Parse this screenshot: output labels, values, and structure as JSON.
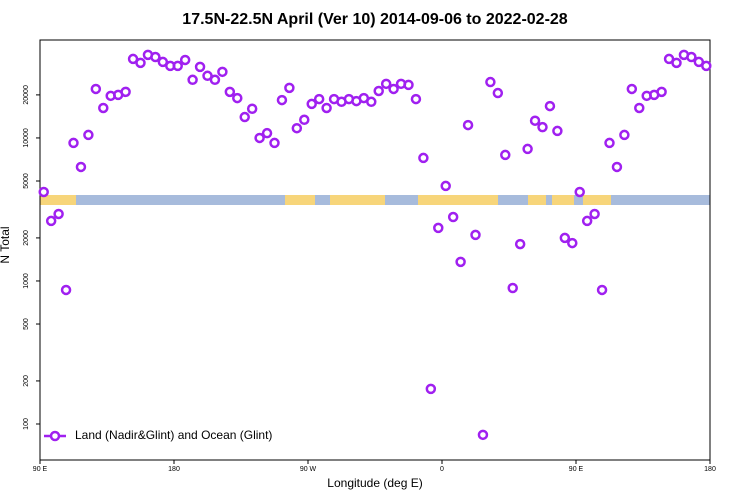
{
  "chart_data": {
    "type": "scatter",
    "title": "17.5N-22.5N April (Ver 10)   2014-09-06 to 2022-02-28",
    "x_label": "Longitude (deg E)",
    "y_label": "N Total",
    "log_y": true,
    "legend_position": "bottomleft",
    "xlim": [
      90,
      540
    ],
    "ylim": [
      56,
      48400
    ],
    "xticks": [
      {
        "value": 90,
        "label": "90 E"
      },
      180,
      {
        "value": 270,
        "label": "90 W"
      },
      {
        "value": 360,
        "label": "0"
      },
      {
        "value": 450,
        "label": "90 E"
      },
      {
        "value": 540,
        "label": "180"
      }
    ],
    "yticks": [
      100,
      200,
      500,
      1000,
      2000,
      5000,
      10000,
      20000
    ],
    "x": [
      92.5,
      97.5,
      102.5,
      107.5,
      112.5,
      117.5,
      122.5,
      127.5,
      132.5,
      137.5,
      142.5,
      147.5,
      152.5,
      157.5,
      162.5,
      167.5,
      172.5,
      177.5,
      182.5,
      187.5,
      192.5,
      197.5,
      202.5,
      207.5,
      212.5,
      217.5,
      222.5,
      227.5,
      232.5,
      237.5,
      242.5,
      247.5,
      252.5,
      257.5,
      262.5,
      267.5,
      272.5,
      277.5,
      282.5,
      287.5,
      292.5,
      297.5,
      302.5,
      307.5,
      312.5,
      317.5,
      322.5,
      327.5,
      332.5,
      337.5,
      342.5,
      347.5,
      352.5,
      357.5,
      362.5,
      367.5,
      372.5,
      377.5,
      382.5,
      387.5,
      392.5,
      397.5,
      402.5,
      407.5,
      412.5,
      417.5,
      422.5,
      427.5,
      432.5,
      437.5,
      442.5,
      447.5,
      452.5,
      457.5,
      462.5,
      467.5,
      472.5,
      477.5,
      482.5,
      487.5,
      492.5,
      497.5,
      502.5,
      507.5,
      512.5,
      517.5,
      522.5,
      527.5,
      532.5,
      537.5
    ],
    "series": [
      {
        "name": "Land (Nadir&Glint) and Ocean (Glint)",
        "color": "#a020f0",
        "values": [
          4190,
          2630,
          2940,
          865,
          9230,
          6270,
          10500,
          22000,
          16200,
          19700,
          20000,
          21000,
          35700,
          33500,
          38100,
          36800,
          34000,
          31900,
          31900,
          35100,
          25500,
          31400,
          27200,
          25500,
          29000,
          21000,
          19000,
          14000,
          16000,
          10000,
          10800,
          9230,
          18400,
          22400,
          11700,
          13400,
          17300,
          18700,
          16200,
          18700,
          17900,
          18700,
          18100,
          19000,
          17900,
          21300,
          23900,
          22000,
          23900,
          23500,
          18700,
          7250,
          176,
          2350,
          4620,
          2800,
          1360,
          12300,
          2100,
          84,
          24600,
          20600,
          7610,
          893,
          1810,
          8380,
          13200,
          11900,
          16700,
          11200,
          2000,
          1840,
          4190,
          2630,
          2940,
          865,
          9230,
          6270,
          10500,
          22000,
          16200,
          19700,
          20000,
          21000,
          35700,
          33500,
          38100,
          36800,
          34000,
          31900
        ]
      }
    ]
  }
}
